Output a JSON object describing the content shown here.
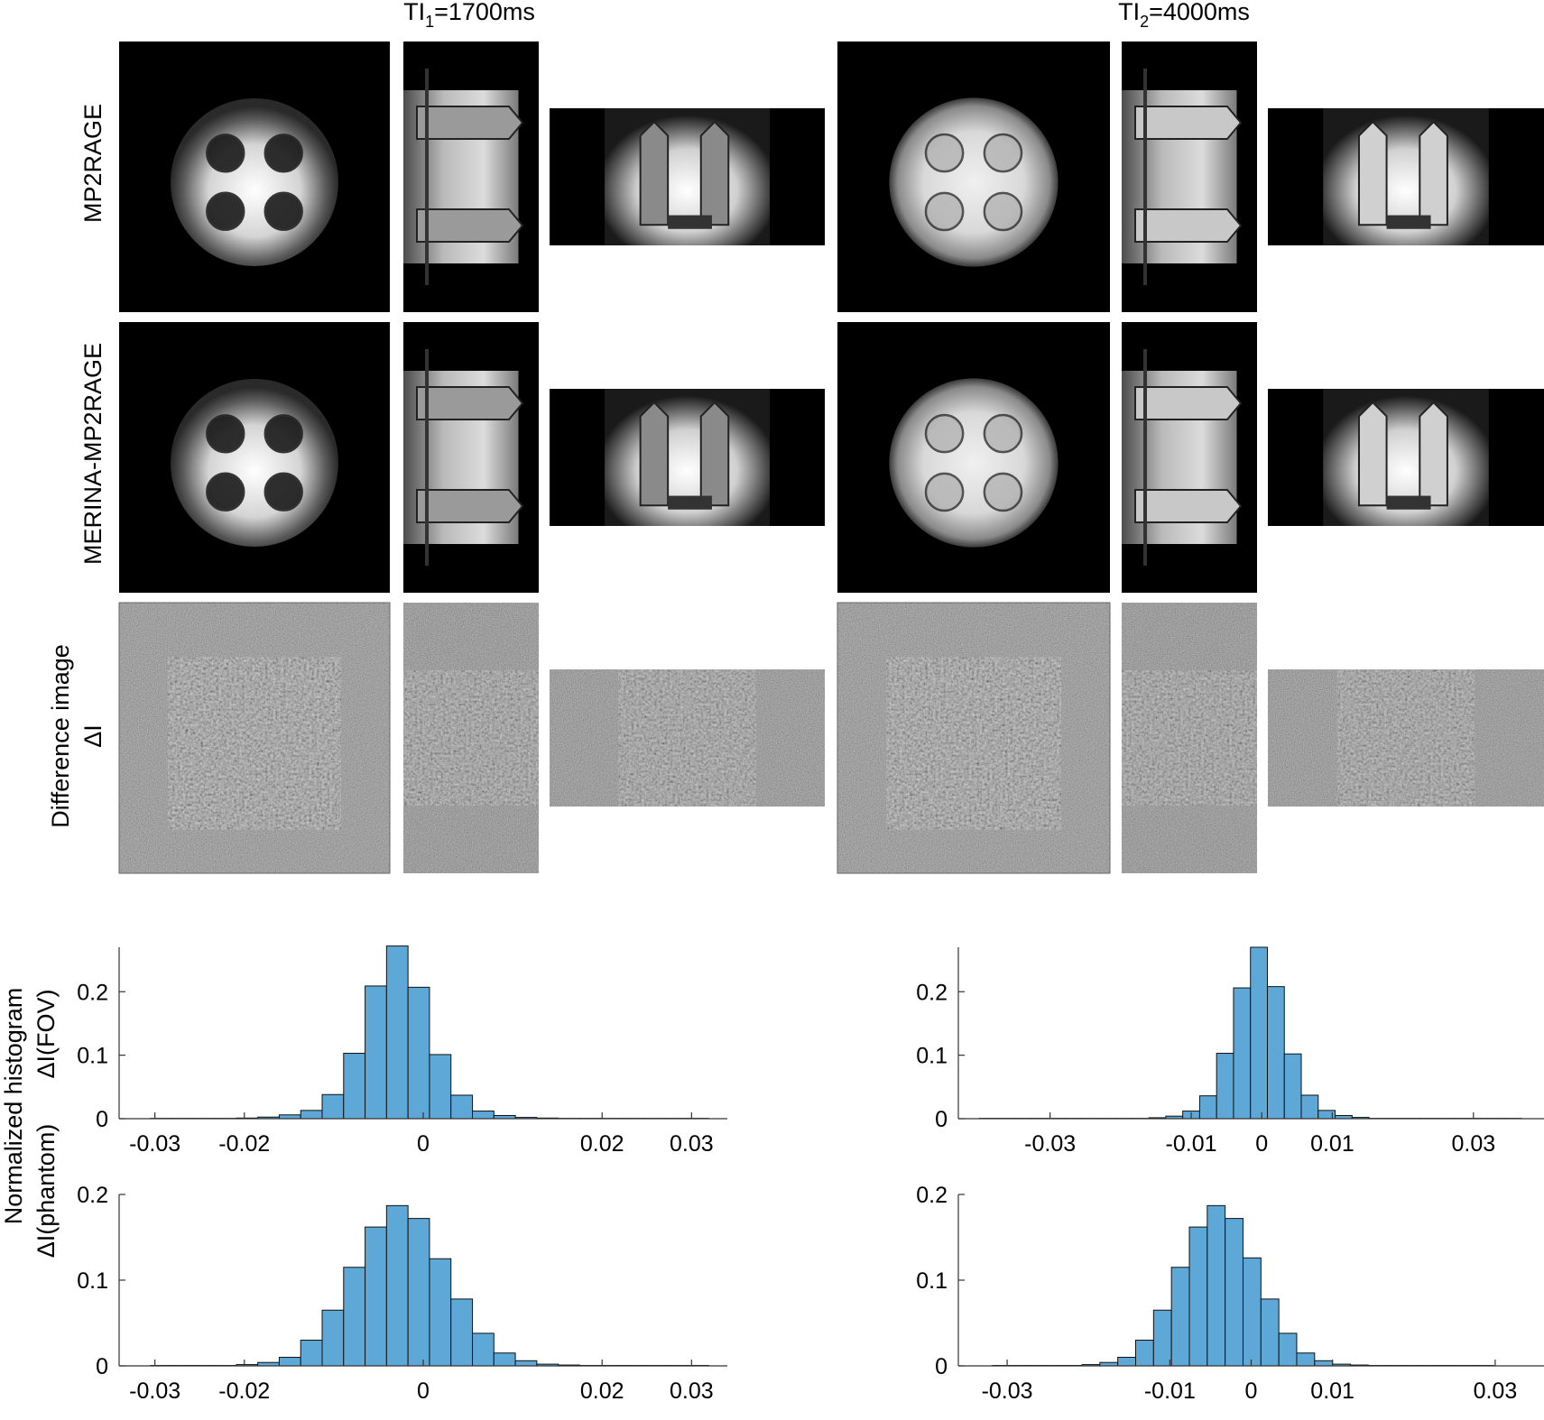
{
  "columns": {
    "ti1": {
      "prefix": "TI",
      "sub": "1",
      "suffix": "=1700ms"
    },
    "ti2": {
      "prefix": "TI",
      "sub": "2",
      "suffix": "=4000ms"
    }
  },
  "rows": {
    "mp2rage": "MP2RAGE",
    "merina": "MERINA-MP2RAGE",
    "diff_line1": "Difference image",
    "diff_line2": "ΔI"
  },
  "hist_labels": {
    "shared": "Normalized histogram",
    "fov": "ΔI(FOV)",
    "phantom": "ΔI(phantom)"
  },
  "chart_data": [
    {
      "type": "bar",
      "id": "fov-ti1",
      "xlim": [
        -0.034,
        0.034
      ],
      "ylim": [
        0,
        0.27
      ],
      "xticks": [
        -0.03,
        -0.02,
        0,
        0.02,
        0.03
      ],
      "xtick_labels": [
        "-0.03",
        "-0.02",
        "0",
        "0.02",
        "0.03"
      ],
      "yticks": [
        0,
        0.1,
        0.2
      ],
      "ytick_labels": [
        "0",
        "0.1",
        "0.2"
      ],
      "bin_edges": [
        -0.0305,
        -0.0281,
        -0.0257,
        -0.0233,
        -0.0209,
        -0.0185,
        -0.0161,
        -0.0137,
        -0.0113,
        -0.0089,
        -0.0065,
        -0.0041,
        -0.0017,
        0.0007,
        0.0031,
        0.0055,
        0.0079,
        0.0103,
        0.0127,
        0.0151,
        0.0175,
        0.0199,
        0.0223,
        0.0247,
        0.0271,
        0.0295,
        0.0319
      ],
      "values": [
        0.0005,
        0.0005,
        0.0005,
        0.0005,
        0.001,
        0.0025,
        0.006,
        0.013,
        0.038,
        0.103,
        0.209,
        0.272,
        0.207,
        0.101,
        0.037,
        0.012,
        0.005,
        0.002,
        0.001,
        0.0005,
        0.0005,
        0.0005,
        0.0005,
        0.0005,
        0.0005,
        0.0005
      ]
    },
    {
      "type": "bar",
      "id": "fov-ti2",
      "xlim": [
        -0.043,
        0.04
      ],
      "ylim": [
        0,
        0.27
      ],
      "xticks": [
        -0.03,
        -0.01,
        0,
        0.01,
        0.03
      ],
      "xtick_labels": [
        "-0.03",
        "-0.01",
        "0",
        "0.01",
        "0.03"
      ],
      "yticks": [
        0,
        0.1,
        0.2
      ],
      "ytick_labels": [
        "0",
        "0.1",
        "0.2"
      ],
      "bin_edges": [
        -0.04,
        -0.0376,
        -0.0352,
        -0.0328,
        -0.0304,
        -0.028,
        -0.0256,
        -0.0232,
        -0.0208,
        -0.0184,
        -0.016,
        -0.0136,
        -0.0112,
        -0.0088,
        -0.0064,
        -0.004,
        -0.0016,
        0.0008,
        0.0032,
        0.0056,
        0.008,
        0.0104,
        0.0128,
        0.0152,
        0.0176,
        0.02,
        0.0224,
        0.0248,
        0.0272,
        0.0296,
        0.032,
        0.0344,
        0.0368
      ],
      "values": [
        0.0005,
        0.0005,
        0.0005,
        0.0005,
        0.0005,
        0.0005,
        0.0005,
        0.0005,
        0.0005,
        0.0005,
        0.0015,
        0.004,
        0.012,
        0.036,
        0.103,
        0.206,
        0.27,
        0.208,
        0.102,
        0.037,
        0.013,
        0.005,
        0.002,
        0.0005,
        0.0005,
        0.0005,
        0.0005,
        0.0005,
        0.0005,
        0.0005,
        0.0005,
        0.0005
      ]
    },
    {
      "type": "bar",
      "id": "phantom-ti1",
      "xlim": [
        -0.034,
        0.034
      ],
      "ylim": [
        0,
        0.2
      ],
      "xticks": [
        -0.03,
        -0.02,
        0,
        0.02,
        0.03
      ],
      "xtick_labels": [
        "-0.03",
        "-0.02",
        "0",
        "0.02",
        "0.03"
      ],
      "yticks": [
        0,
        0.1,
        0.2
      ],
      "ytick_labels": [
        "0",
        "0.1",
        "0.2"
      ],
      "bin_edges": [
        -0.0305,
        -0.0281,
        -0.0257,
        -0.0233,
        -0.0209,
        -0.0185,
        -0.0161,
        -0.0137,
        -0.0113,
        -0.0089,
        -0.0065,
        -0.0041,
        -0.0017,
        0.0007,
        0.0031,
        0.0055,
        0.0079,
        0.0103,
        0.0127,
        0.0151,
        0.0175,
        0.0199,
        0.0223,
        0.0247,
        0.0271,
        0.0295,
        0.0319
      ],
      "values": [
        0.0005,
        0.0005,
        0.0005,
        0.0005,
        0.0015,
        0.004,
        0.01,
        0.03,
        0.065,
        0.115,
        0.162,
        0.187,
        0.172,
        0.125,
        0.078,
        0.038,
        0.015,
        0.006,
        0.002,
        0.001,
        0.0005,
        0.0005,
        0.0005,
        0.0005,
        0.0005,
        0.0005
      ]
    },
    {
      "type": "bar",
      "id": "phantom-ti2",
      "xlim": [
        -0.036,
        0.036
      ],
      "ylim": [
        0,
        0.2
      ],
      "xticks": [
        -0.03,
        -0.01,
        0,
        0.01,
        0.03
      ],
      "xtick_labels": [
        "-0.03",
        "-0.01",
        "0",
        "0.01",
        "0.03"
      ],
      "yticks": [
        0,
        0.1,
        0.2
      ],
      "ytick_labels": [
        "0",
        "0.1",
        "0.2"
      ],
      "bin_edges": [
        -0.0318,
        -0.0296,
        -0.0274,
        -0.0252,
        -0.023,
        -0.0208,
        -0.0186,
        -0.0164,
        -0.0142,
        -0.012,
        -0.0098,
        -0.0076,
        -0.0054,
        -0.0032,
        -0.001,
        0.0012,
        0.0034,
        0.0056,
        0.0078,
        0.01,
        0.0122,
        0.0144,
        0.0166,
        0.0188,
        0.021,
        0.0232,
        0.0254,
        0.0276,
        0.0298
      ],
      "values": [
        0.0005,
        0.0005,
        0.0005,
        0.0005,
        0.0005,
        0.0015,
        0.004,
        0.01,
        0.03,
        0.065,
        0.115,
        0.162,
        0.187,
        0.172,
        0.126,
        0.078,
        0.038,
        0.015,
        0.006,
        0.002,
        0.001,
        0.0005,
        0.0005,
        0.0005,
        0.0005,
        0.0005,
        0.0005,
        0.0005
      ]
    }
  ]
}
